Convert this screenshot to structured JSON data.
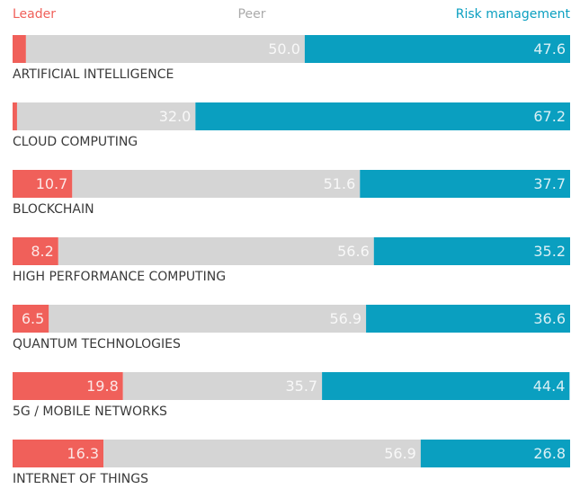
{
  "chart_data": {
    "type": "stacked-bar-horizontal",
    "categories": [
      "ARTIFICIAL INTELLIGENCE",
      "CLOUD COMPUTING",
      "BLOCKCHAIN",
      "HIGH PERFORMANCE COMPUTING",
      "QUANTUM TECHNOLOGIES",
      "5G / MOBILE NETWORKS",
      "INTERNET OF THINGS"
    ],
    "xlim": [
      0,
      100
    ],
    "series": [
      {
        "name": "Leader",
        "color": "#f0605a",
        "values": [
          2.4,
          0.8,
          10.7,
          8.2,
          6.5,
          19.8,
          16.3
        ],
        "value_labels": [
          null,
          null,
          "10.7",
          "8.2",
          "6.5",
          "19.8",
          "16.3"
        ]
      },
      {
        "name": "Peer",
        "color": "#d5d5d5",
        "values": [
          50.0,
          32.0,
          51.6,
          56.6,
          56.9,
          35.7,
          56.9
        ],
        "value_labels": [
          "50.0",
          "32.0",
          "51.6",
          "56.6",
          "56.9",
          "35.7",
          "56.9"
        ]
      },
      {
        "name": "Risk management",
        "color": "#0a9fc0",
        "values": [
          47.6,
          67.2,
          37.7,
          35.2,
          36.6,
          44.4,
          26.8
        ],
        "value_labels": [
          "47.6",
          "67.2",
          "37.7",
          "35.2",
          "36.6",
          "44.4",
          "26.8"
        ]
      }
    ]
  }
}
